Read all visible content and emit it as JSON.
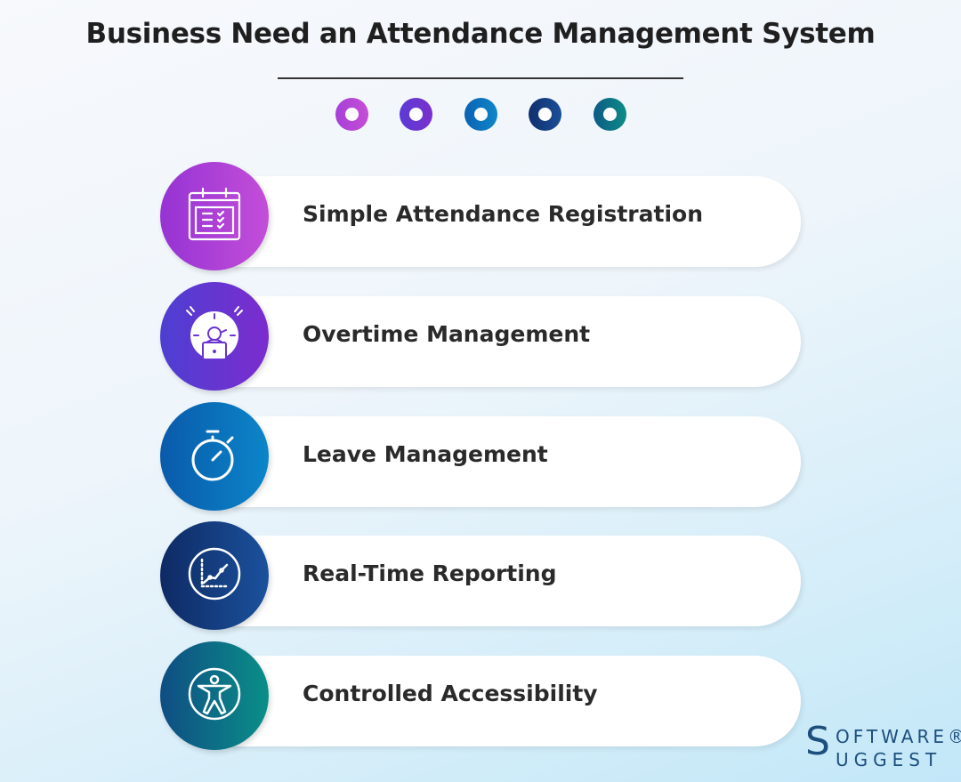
{
  "title": "Business Need an Attendance Management System",
  "dots": [
    {
      "color_from": "#a63fd8",
      "color_to": "#c64ed6"
    },
    {
      "color_from": "#5b3bd6",
      "color_to": "#7a30cc"
    },
    {
      "color_from": "#0b63b4",
      "color_to": "#0e86c9"
    },
    {
      "color_from": "#102f6c",
      "color_to": "#1a4f98"
    },
    {
      "color_from": "#0e5a86",
      "color_to": "#0b8d86"
    }
  ],
  "items": [
    {
      "label": "Simple Attendance Registration",
      "icon": "calendar-checklist-icon",
      "color_from": "#9633d4",
      "color_to": "#c34ed8"
    },
    {
      "label": "Overtime Management",
      "icon": "clock-person-laptop-icon",
      "color_from": "#4d3fd2",
      "color_to": "#7c2cce"
    },
    {
      "label": "Leave Management",
      "icon": "stopwatch-icon",
      "color_from": "#0a5aab",
      "color_to": "#0b85c9"
    },
    {
      "label": "Real-Time Reporting",
      "icon": "chart-trend-icon",
      "color_from": "#0e2a64",
      "color_to": "#1b519c"
    },
    {
      "label": "Controlled Accessibility",
      "icon": "accessibility-icon",
      "color_from": "#0f4d83",
      "color_to": "#0a8f88"
    }
  ],
  "logo": {
    "first_s": "S",
    "line1": "OFTWARE®",
    "second_s": "S",
    "line2": "UGGEST",
    "text": "SoftwareSuggest"
  }
}
